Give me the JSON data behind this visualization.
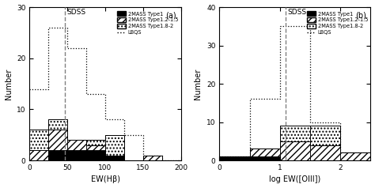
{
  "panel_a": {
    "title_label": "SDSS",
    "panel_label": "(a)",
    "dashed_vline": 47,
    "xlim": [
      0,
      200
    ],
    "ylim": [
      0,
      30
    ],
    "xlabel": "EW(Hβ)",
    "ylabel": "Number",
    "yticks": [
      0,
      10,
      20,
      30
    ],
    "xticks": [
      0,
      50,
      100,
      150,
      200
    ],
    "bin_width": 25,
    "type1_bins": [
      0,
      25,
      50,
      75,
      100,
      125,
      150,
      175,
      200
    ],
    "type1_vals": [
      0,
      2,
      2,
      2,
      1,
      0,
      0,
      0
    ],
    "type12_bins": [
      0,
      25,
      50,
      75,
      100,
      125,
      150,
      175,
      200
    ],
    "type12_vals": [
      2,
      6,
      4,
      3,
      1,
      0,
      1,
      0
    ],
    "type18_bins": [
      0,
      25,
      50,
      75,
      100,
      125,
      150,
      175,
      200
    ],
    "type18_vals": [
      6,
      8,
      3,
      4,
      5,
      0,
      0,
      0
    ],
    "lbqs_bins": [
      0,
      25,
      50,
      75,
      100,
      125,
      150,
      175,
      200
    ],
    "lbqs_vals": [
      14,
      26,
      22,
      13,
      8,
      5,
      1,
      0
    ]
  },
  "panel_b": {
    "title_label": "SDSS",
    "panel_label": "(b)",
    "dashed_vline": 1.1,
    "xlim": [
      0,
      2.5
    ],
    "ylim": [
      0,
      40
    ],
    "xlabel": "log EW([OIII])",
    "ylabel": "Number",
    "yticks": [
      0,
      10,
      20,
      30,
      40
    ],
    "xticks": [
      0,
      1,
      2
    ],
    "xticklabels": [
      "0",
      "1",
      "2"
    ],
    "bin_width": 0.5,
    "type1_bins": [
      0.0,
      0.5,
      1.0,
      1.5,
      2.0,
      2.5
    ],
    "type1_vals": [
      1,
      1,
      0,
      0,
      0
    ],
    "type12_bins": [
      0.0,
      0.5,
      1.0,
      1.5,
      2.0,
      2.5
    ],
    "type12_vals": [
      0,
      3,
      5,
      4,
      2
    ],
    "type18_bins": [
      0.0,
      0.5,
      1.0,
      1.5,
      2.0,
      2.5
    ],
    "type18_vals": [
      1,
      3,
      9,
      9,
      2
    ],
    "lbqs_bins": [
      0.0,
      0.5,
      1.0,
      1.5,
      2.0,
      2.5
    ],
    "lbqs_vals": [
      1,
      16,
      35,
      10,
      2
    ]
  },
  "legend_labels": [
    "2MASS Type1",
    "2MASS Type1.2-1.5",
    "2MASS Type1.8-2",
    "LBQS"
  ],
  "fig_bg": "#ffffff"
}
